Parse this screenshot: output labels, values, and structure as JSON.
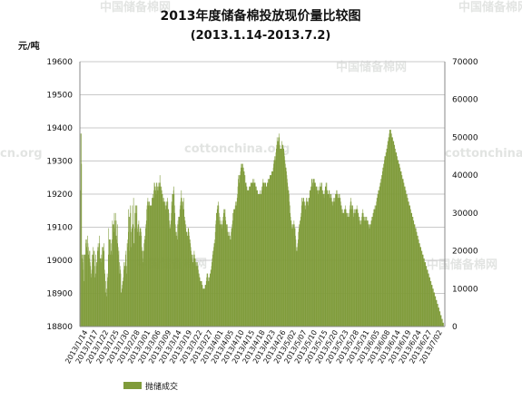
{
  "chart_data": {
    "type": "bar+line",
    "title": "2013年度储备棉投放现价量比较图",
    "subtitle": "(2013.1.14-2013.7.2)",
    "y_left_label": "元/吨",
    "y_left_range": [
      18800,
      19600
    ],
    "y_left_ticks": [
      18800,
      18900,
      19000,
      19100,
      19200,
      19300,
      19400,
      19500,
      19600
    ],
    "y_right_range": [
      0,
      70000
    ],
    "y_right_ticks": [
      0,
      10000,
      20000,
      30000,
      40000,
      50000,
      60000,
      70000
    ],
    "x_labels": [
      "2013/1/14",
      "2013/1/17",
      "2013/1/22",
      "2013/1/25",
      "2013/1/30",
      "2013/2/28",
      "2013/3/01",
      "2013/3/06",
      "2013/3/09",
      "2013/3/14",
      "2013/3/19",
      "2013/3/22",
      "2013/3/27",
      "2013/4/01",
      "2013/4/05",
      "2013/4/10",
      "2013/4/15",
      "2013/4/18",
      "2013/4/23",
      "2013/4/26",
      "2013/5/02",
      "2013/5/07",
      "2013/5/10",
      "2013/5/15",
      "2013/5/20",
      "2013/5/23",
      "2013/5/28",
      "2013/5/31",
      "2013/6/05",
      "2013/6/08",
      "2013/6/14",
      "2013/6/19",
      "2013/6/24",
      "2013/6/27",
      "2013/7/02"
    ],
    "series": [
      {
        "name": "抛储成交",
        "axis": "right",
        "color": "#7f9b3a",
        "values": [
          21000,
          36000,
          51000,
          51000,
          43000,
          18000,
          19000,
          17000,
          19000,
          15000,
          19000,
          12000,
          19000,
          19000,
          19000,
          23000,
          22000,
          21000,
          23000,
          20000,
          24000,
          22000,
          21000,
          19000,
          18000,
          20000,
          20000,
          17000,
          16000,
          14000,
          13000,
          15000,
          19000,
          17000,
          19000,
          21000,
          20000,
          18000,
          20000,
          16000,
          13000,
          14000,
          19000,
          17000,
          16000,
          17000,
          20000,
          21000,
          22000,
          21000,
          20000,
          24000,
          22000,
          18000,
          18000,
          18000,
          17000,
          19000,
          18000,
          21000,
          21000,
          21000,
          20000,
          22000,
          20000,
          15000,
          14000,
          9000,
          12000,
          9000,
          10000,
          8000,
          14000,
          12000,
          13000,
          19000,
          26000,
          23000,
          23000,
          23000,
          19000,
          23000,
          22000,
          20000,
          19000,
          23000,
          28000,
          27000,
          27000,
          27000,
          25000,
          30000,
          26000,
          28000,
          30000,
          24000,
          28000,
          23000,
          24000,
          27000,
          22000,
          21000,
          19000,
          20000,
          14000,
          17000,
          16000,
          15000,
          14000,
          9000,
          9000,
          10000,
          11000,
          12000,
          12000,
          13000,
          17000,
          15000,
          16000,
          16000,
          17000,
          19000,
          20000,
          16000,
          14000,
          22000,
          21000,
          23000,
          31000,
          25000,
          29000,
          20000,
          29000,
          32000,
          30000,
          25000,
          21000,
          26000,
          26000,
          32000,
          27000,
          27000,
          34000,
          22000,
          22000,
          26000,
          30000,
          32000,
          30000,
          32000,
          30000,
          32000,
          26000,
          25000,
          27000,
          27000,
          28000,
          25000,
          24000,
          26000,
          26000,
          26000,
          25000,
          24000,
          21000,
          20000,
          18000,
          20000,
          17000,
          20000,
          22000,
          23000,
          24000,
          23000,
          26000,
          27000,
          28000,
          31000,
          32000,
          33000,
          34000,
          33000,
          32000,
          33000,
          33000,
          32000,
          32000,
          32000,
          32000,
          32000,
          32000,
          34000,
          34000,
          34000,
          35000,
          34000,
          36000,
          38000,
          38000,
          37000,
          37000,
          36000,
          35000,
          38000,
          38000,
          36000,
          37000,
          36000,
          37000,
          38000,
          37000,
          38000,
          40000,
          38000,
          37000,
          36000,
          37000,
          36000,
          35000,
          35000,
          34000,
          33000,
          33000,
          34000,
          33000,
          32000,
          33000,
          32000,
          31000,
          32000,
          33000,
          33000,
          34000,
          33000,
          31000,
          31000,
          30000,
          28000,
          26000,
          26000,
          27000,
          28000,
          30000,
          33000,
          32000,
          35000,
          35000,
          35000,
          36000,
          37000,
          35000,
          32000,
          30000,
          27000,
          25000,
          24000,
          25000,
          24000,
          23000,
          27000,
          28000,
          29000,
          27000,
          29000,
          29000,
          31000,
          32000,
          33000,
          34000,
          36000,
          34000,
          32000,
          33000,
          31000,
          33000,
          34000,
          31000,
          28000,
          29000,
          28000,
          26000,
          27000,
          25000,
          25000,
          25000,
          24000,
          24000,
          26000,
          26000,
          25000,
          24000,
          23000,
          23000,
          22000,
          21000,
          20000,
          18000,
          19000,
          19000,
          17000,
          17000,
          19000,
          18000,
          20000,
          19000,
          18000,
          18000,
          17000,
          16000,
          17000,
          16000,
          16000,
          17000,
          16000,
          15000,
          14000,
          14000,
          13000,
          13000,
          12000,
          12000,
          12000,
          12000,
          12000,
          11000,
          11000,
          10000,
          10000,
          10000,
          10000,
          10000,
          10000,
          11000,
          11000,
          11000,
          12000,
          13000,
          14000,
          14000,
          14000,
          13000,
          12000,
          12000,
          13000,
          13000,
          14000,
          14000,
          15000,
          15000,
          16000,
          17000,
          18000,
          19000,
          20000,
          20000,
          21000,
          22000,
          22000,
          23000,
          25000,
          27000,
          28000,
          30000,
          30000,
          31000,
          32000,
          32000,
          33000,
          32000,
          30000,
          28000,
          29000,
          27000,
          27000,
          28000,
          27000,
          27000,
          26000,
          27000,
          28000,
          29000,
          30000,
          31000,
          31000,
          30000,
          31000,
          29000,
          28000,
          27000,
          27000,
          26000,
          27000,
          25000,
          25000,
          24000,
          24000,
          25000,
          24000,
          24000,
          23000,
          23000,
          25000,
          26000,
          26000,
          27000,
          28000,
          30000,
          30000,
          31000,
          31000,
          31000,
          31000,
          32000,
          33000,
          32000,
          33000,
          32000,
          34000,
          35000,
          37000,
          39000,
          40000,
          38000,
          40000,
          40000,
          40000,
          41000,
          42000,
          43000,
          43000,
          42000,
          43000,
          43000,
          42000,
          42000,
          41000,
          41000,
          40000,
          40000,
          38000,
          38000,
          38000,
          37000,
          37000,
          36000,
          36000,
          36000,
          36000,
          36000,
          37000,
          37000,
          37000,
          37000,
          38000,
          38000,
          38000,
          38000,
          38000,
          38000,
          39000,
          38000,
          38000,
          39000,
          38000,
          38000,
          38000,
          37000,
          37000,
          37000,
          36000,
          36000,
          36000,
          35000,
          35000,
          35000,
          35000,
          35000,
          35000,
          36000,
          35000,
          35000,
          35000,
          36000,
          37000,
          37000,
          38000,
          39000,
          38000,
          38000,
          38000,
          37000,
          38000,
          38000,
          38000,
          37000,
          37000,
          37000,
          38000,
          38000,
          39000,
          38000,
          39000,
          39000,
          39000,
          40000,
          40000,
          40000,
          40000,
          40000,
          41000,
          41000,
          41000,
          41000,
          42000,
          43000,
          44000,
          44000,
          45000,
          44000,
          45000,
          46000,
          47000,
          48000,
          50000,
          49000,
          48000,
          49000,
          50000,
          51000,
          50000,
          48000,
          47000,
          47000,
          47000,
          47000,
          47000,
          49000,
          48000,
          48000,
          48000,
          47000,
          47000,
          46000,
          45000,
          44000,
          43000,
          42000,
          42000,
          41000,
          40000,
          39000,
          38000,
          37000,
          36000,
          36000,
          35000,
          33000,
          32000,
          30000,
          29000,
          28000,
          28000,
          27000,
          26000,
          26000,
          27000,
          27000,
          27000,
          28000,
          27000,
          26000,
          26000,
          24000,
          23000,
          21000,
          20000,
          20000,
          21000,
          22000,
          23000,
          25000,
          26000,
          27000,
          27000,
          28000,
          28000,
          29000,
          30000,
          32000,
          34000,
          34000,
          33000,
          33000,
          34000,
          34000,
          33000,
          33000,
          32000,
          31000,
          32000,
          33000,
          34000,
          34000,
          33000,
          33000,
          32000,
          33000,
          34000,
          34000,
          34000,
          36000,
          36000,
          36000,
          37000,
          37000,
          39000,
          39000,
          38000,
          37000,
          39000,
          39000,
          39000,
          39000,
          38000,
          38000,
          38000,
          37000,
          37000,
          37000,
          36000,
          36000,
          37000,
          36000,
          35000,
          36000,
          36000,
          37000,
          37000,
          38000,
          37000,
          37000,
          38000,
          38000,
          36000,
          35000,
          36000,
          35000,
          35000,
          34000,
          35000,
          36000,
          37000,
          37000,
          38000,
          37000,
          38000,
          36000,
          36000,
          35000,
          35000,
          35000,
          36000,
          36000,
          35000,
          34000,
          35000,
          34000,
          35000,
          34000,
          33000,
          32000,
          33000,
          33000,
          34000,
          33000,
          33000,
          34000,
          34000,
          35000,
          35000,
          35000,
          36000,
          36000,
          35000,
          35000,
          34000,
          34000,
          35000,
          34000,
          35000,
          34000,
          34000,
          33000,
          32000,
          32000,
          31000,
          30000,
          30000,
          31000,
          30000,
          30000,
          30000,
          31000,
          31000,
          32000,
          31000,
          31000,
          30000,
          30000,
          29000,
          30000,
          30000,
          29000,
          29000,
          29000,
          30000,
          31000,
          32000,
          33000,
          34000,
          33000,
          32000,
          31000,
          32000,
          32000,
          31000,
          30000,
          29000,
          30000,
          31000,
          30000,
          31000,
          30000,
          31000,
          31000,
          32000,
          31000,
          31000,
          30000,
          30000,
          29000,
          28000,
          29000,
          28000,
          27000,
          27000,
          28000,
          28000,
          29000,
          30000,
          30000,
          31000,
          30000,
          29000,
          28000,
          29000,
          28000,
          28000,
          29000,
          29000,
          28000,
          29000,
          28000,
          28000,
          27000,
          28000,
          27000,
          27000,
          26000,
          27000,
          26000,
          27000,
          27000,
          28000,
          28000,
          29000,
          29000,
          29000,
          30000,
          30000,
          31000,
          31000,
          31000,
          32000,
          32000,
          31000,
          32000,
          33000,
          34000,
          34000,
          35000,
          35000,
          36000,
          36000,
          36000,
          37000,
          37000,
          38000,
          38000,
          39000,
          39000,
          40000,
          40000,
          41000,
          42000,
          42000,
          43000,
          43000,
          44000,
          45000,
          45000,
          45000,
          46000,
          46000,
          47000,
          47000,
          48000,
          49000,
          49000,
          50000,
          50000,
          51000,
          52000,
          52000,
          52000,
          52000,
          51000,
          51000,
          50000,
          50000,
          50000,
          49000,
          49000,
          49000,
          48000,
          48000,
          47000,
          47000,
          46000,
          46000,
          46000,
          45000,
          45000,
          44000,
          44000,
          44000,
          43000,
          43000,
          43000,
          42000,
          42000,
          41000,
          41000,
          41000,
          40000,
          40000,
          39000,
          39000,
          39000,
          38000,
          38000,
          37000,
          37000,
          37000,
          36000,
          36000,
          35000,
          35000,
          35000,
          34000,
          34000,
          33000,
          33000,
          33000,
          32000,
          32000,
          32000,
          31000,
          31000,
          30000,
          30000,
          30000,
          29000,
          29000,
          29000,
          28000,
          28000,
          27000,
          27000,
          27000,
          26000,
          26000,
          26000,
          25000,
          25000,
          24000,
          24000,
          24000,
          23000,
          23000,
          22000,
          22000,
          22000,
          21000,
          21000,
          21000,
          20000,
          20000,
          20000,
          19000,
          19000,
          19000,
          18000,
          18000,
          18000,
          17000,
          17000,
          17000,
          16000,
          16000,
          16000,
          15000,
          15000,
          15000,
          14000,
          14000,
          14000,
          13000,
          13000,
          13000,
          12000,
          12000,
          12000,
          11000,
          11000,
          11000,
          10000,
          10000,
          10000,
          9000,
          9000,
          9000,
          8000,
          8000,
          8000,
          7000,
          7000,
          7000,
          6000,
          6000,
          6000,
          5000,
          5000,
          5000,
          4000,
          4000,
          4000,
          3000,
          3000,
          3000,
          2000,
          2000,
          2000,
          1000,
          1000,
          1000,
          0,
          0,
          0
        ]
      }
    ]
  }
}
